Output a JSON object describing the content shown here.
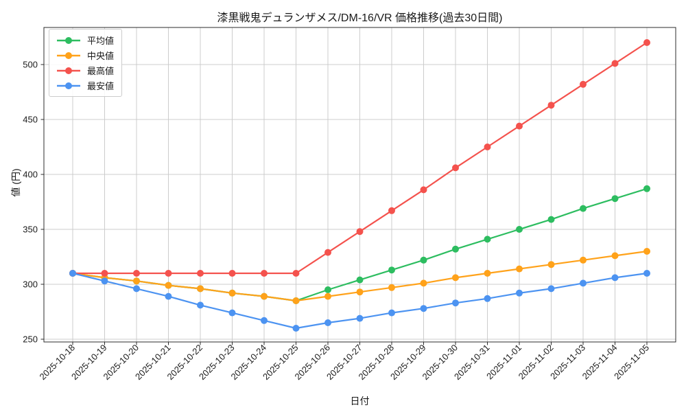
{
  "figure": {
    "title": "漆黒戦鬼デュランザメス/DM-16/VR 価格推移(過去30日間)",
    "xlabel": "日付",
    "ylabel": "値 (円)",
    "background_color": "#ffffff",
    "grid_color": "#cccccc",
    "spine_color": "#2b2b2b",
    "text_color": "#1a1a1a"
  },
  "chart_data": {
    "type": "line",
    "title": "漆黒戦鬼デュランザメス/DM-16/VR 価格推移(過去30日間)",
    "xlabel": "日付",
    "ylabel": "値 (円)",
    "x": [
      "2025-10-18",
      "2025-10-19",
      "2025-10-20",
      "2025-10-21",
      "2025-10-22",
      "2025-10-23",
      "2025-10-24",
      "2025-10-25",
      "2025-10-26",
      "2025-10-27",
      "2025-10-28",
      "2025-10-29",
      "2025-10-30",
      "2025-10-31",
      "2025-11-01",
      "2025-11-02",
      "2025-11-03",
      "2025-11-04",
      "2025-11-05"
    ],
    "series": [
      {
        "key": "average",
        "name": "平均値",
        "color": "#2dbd60",
        "values": [
          310,
          306,
          303,
          299,
          296,
          292,
          289,
          285,
          295,
          304,
          313,
          322,
          332,
          341,
          350,
          359,
          369,
          378,
          387
        ]
      },
      {
        "key": "median",
        "name": "中央値",
        "color": "#ffa21a",
        "values": [
          310,
          306,
          303,
          299,
          296,
          292,
          289,
          285,
          289,
          293,
          297,
          301,
          306,
          310,
          314,
          318,
          322,
          326,
          330
        ]
      },
      {
        "key": "max",
        "name": "最高値",
        "color": "#f4524d",
        "values": [
          310,
          310,
          310,
          310,
          310,
          310,
          310,
          310,
          329,
          348,
          367,
          386,
          406,
          425,
          444,
          463,
          482,
          501,
          520
        ]
      },
      {
        "key": "min",
        "name": "最安値",
        "color": "#4c93f1",
        "values": [
          310,
          303,
          296,
          289,
          281,
          274,
          267,
          260,
          265,
          269,
          274,
          278,
          283,
          287,
          292,
          296,
          301,
          306,
          310
        ]
      }
    ],
    "yticks": [
      250,
      300,
      350,
      400,
      450,
      500
    ],
    "ylim": [
      247.5,
      533.75
    ],
    "grid": true,
    "legend_position": "upper left",
    "marker": "circle",
    "marker_radius": 5,
    "line_width": 2.2
  }
}
